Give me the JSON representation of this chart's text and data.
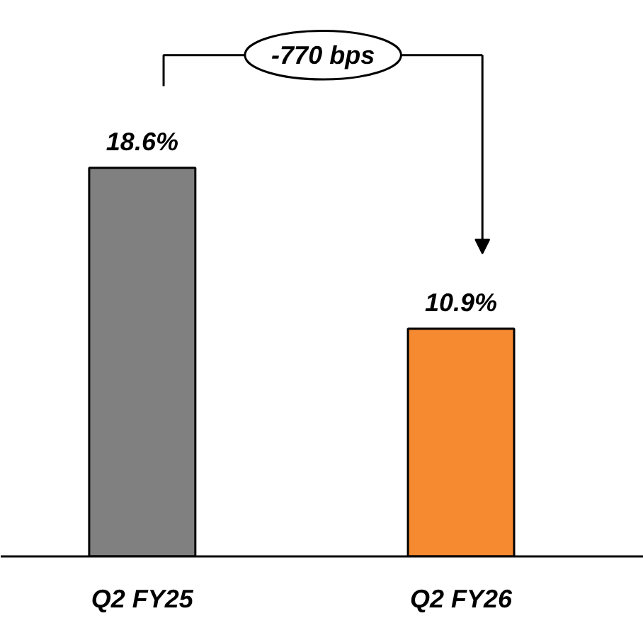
{
  "chart_data": {
    "type": "bar",
    "categories": [
      "Q2 FY25",
      "Q2 FY26"
    ],
    "values": [
      18.6,
      10.9
    ],
    "colors": [
      "#808080",
      "#f58a31"
    ],
    "value_labels": [
      "18.6%",
      "10.9%"
    ],
    "annotations": [
      "-770 bps"
    ]
  }
}
